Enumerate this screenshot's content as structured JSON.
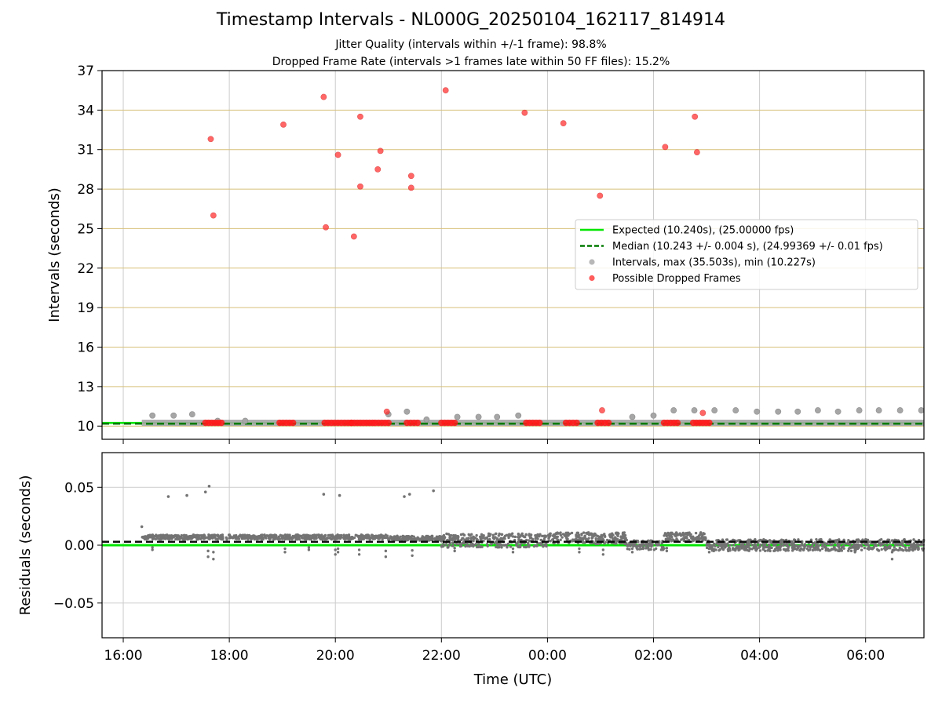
{
  "title": "Timestamp Intervals - NL000G_20250104_162117_814914",
  "subtitle_lines": [
    "Jitter Quality (intervals within +/-1 frame): 98.8%",
    "Dropped Frame Rate (intervals >1 frames late within 50 FF files): 15.2%"
  ],
  "colors": {
    "expected": "#00e600",
    "median": "#007a00",
    "intervals": "#a6a6a6",
    "dropped": "#ff3333",
    "residuals": "#737373",
    "hgrid_top": "#d8c07a",
    "grid": "#cccccc"
  },
  "chart_data": [
    {
      "type": "scatter",
      "panel": "top",
      "ylabel": "Intervals (seconds)",
      "xlabel": "",
      "ylim": [
        9,
        37
      ],
      "yticks": [
        10,
        13,
        16,
        19,
        22,
        25,
        28,
        31,
        34,
        37
      ],
      "xlim_hours": [
        15.6,
        31.1
      ],
      "xticks_hours": [
        16,
        18,
        20,
        22,
        24,
        26,
        28,
        30
      ],
      "xtick_labels": [
        "16:00",
        "18:00",
        "20:00",
        "22:00",
        "00:00",
        "02:00",
        "04:00",
        "06:00"
      ],
      "legend_position": "center-right",
      "lines": [
        {
          "name": "Expected (10.240s), (25.00000 fps)",
          "y": 10.24,
          "style": "solid"
        },
        {
          "name": "Median (10.243 +/- 0.004 s), (24.99369 +/- 0.01 fps)",
          "y": 10.243,
          "style": "dashed"
        }
      ],
      "series": [
        {
          "name": "Intervals, max (35.503s), min (10.227s)",
          "x_hours": [
            16.55,
            16.95,
            17.3,
            17.78,
            18.3,
            21.0,
            21.35,
            21.72,
            22.3,
            22.7,
            23.05,
            23.45,
            25.6,
            26.0,
            26.38,
            26.77,
            27.15,
            27.55,
            27.95,
            28.35,
            28.72,
            29.1,
            29.48,
            29.88,
            30.25,
            30.65,
            31.05
          ],
          "y": [
            10.8,
            10.8,
            10.9,
            10.4,
            10.4,
            10.9,
            11.1,
            10.5,
            10.7,
            10.7,
            10.7,
            10.8,
            10.7,
            10.8,
            11.2,
            11.2,
            11.2,
            11.2,
            11.1,
            11.1,
            11.1,
            11.2,
            11.1,
            11.2,
            11.2,
            11.2,
            11.2
          ],
          "baseline_y": 10.25,
          "baseline_range_hours": [
            16.35,
            31.1
          ]
        },
        {
          "name": "Possible Dropped Frames",
          "x_hours": [
            17.65,
            17.7,
            19.02,
            19.78,
            19.82,
            20.05,
            20.35,
            20.47,
            20.47,
            20.8,
            20.85,
            21.43,
            21.43,
            22.08,
            23.57,
            24.3,
            24.99,
            26.22,
            26.78,
            26.82,
            20.97,
            25.03,
            26.93
          ],
          "y": [
            31.8,
            26.0,
            32.9,
            35.0,
            25.1,
            30.6,
            24.4,
            33.5,
            28.2,
            29.5,
            30.9,
            29.0,
            28.1,
            35.5,
            33.8,
            33.0,
            27.5,
            31.2,
            33.5,
            30.8,
            11.1,
            11.2,
            11.0
          ],
          "baseline_clusters_hours": [
            [
              17.55,
              17.85
            ],
            [
              18.95,
              19.2
            ],
            [
              19.8,
              20.3
            ],
            [
              20.3,
              20.7
            ],
            [
              20.75,
              21.0
            ],
            [
              21.35,
              21.55
            ],
            [
              22.0,
              22.25
            ],
            [
              23.6,
              23.85
            ],
            [
              24.35,
              24.55
            ],
            [
              24.95,
              25.15
            ],
            [
              26.2,
              26.45
            ],
            [
              26.75,
              27.05
            ]
          ],
          "baseline_y": 10.25
        }
      ]
    },
    {
      "type": "scatter",
      "panel": "bottom",
      "ylabel": "Residuals (seconds)",
      "xlabel": "Time (UTC)",
      "ylim": [
        -0.08,
        0.08
      ],
      "yticks": [
        -0.05,
        0.0,
        0.05
      ],
      "ytick_labels": [
        "−0.05",
        "0.00",
        "0.05"
      ],
      "lines": [
        {
          "name": "Expected residual",
          "y": 0.0,
          "style": "solid"
        },
        {
          "name": "Median residual",
          "y": 0.003,
          "style": "dashed"
        }
      ],
      "series": [
        {
          "name": "Residuals",
          "outliers_x_hours": [
            16.85,
            17.2,
            17.55,
            17.62,
            19.78,
            20.08,
            21.3,
            21.4,
            21.85,
            16.35
          ],
          "outliers_y": [
            0.042,
            0.043,
            0.046,
            0.051,
            0.044,
            0.043,
            0.042,
            0.044,
            0.047,
            0.016
          ],
          "bands": [
            {
              "x_hours": [
                16.35,
                21.0
              ],
              "center": 0.007,
              "spread": 0.002
            },
            {
              "x_hours": [
                21.0,
                22.0
              ],
              "center": 0.006,
              "spread": 0.002
            },
            {
              "x_hours": [
                22.0,
                24.0
              ],
              "center": 0.004,
              "spread": 0.006
            },
            {
              "x_hours": [
                24.0,
                25.5
              ],
              "center": 0.006,
              "spread": 0.005
            },
            {
              "x_hours": [
                25.5,
                26.2
              ],
              "center": 0.0,
              "spread": 0.004
            },
            {
              "x_hours": [
                26.2,
                27.0
              ],
              "center": 0.007,
              "spread": 0.004
            },
            {
              "x_hours": [
                27.0,
                31.1
              ],
              "center": 0.0,
              "spread": 0.005
            }
          ],
          "dip_x_hours": [
            16.55,
            17.6,
            17.7,
            19.05,
            19.5,
            20.0,
            20.05,
            20.45,
            20.95,
            21.45,
            22.25,
            23.35,
            24.6,
            25.05,
            25.6,
            26.25,
            27.05,
            28.2,
            29.8,
            30.5
          ],
          "dip_y": [
            -0.004,
            -0.01,
            -0.012,
            -0.006,
            -0.004,
            -0.008,
            -0.006,
            -0.008,
            -0.01,
            -0.009,
            -0.005,
            -0.006,
            -0.006,
            -0.008,
            -0.006,
            -0.005,
            -0.006,
            -0.005,
            -0.006,
            -0.012
          ]
        }
      ]
    }
  ]
}
